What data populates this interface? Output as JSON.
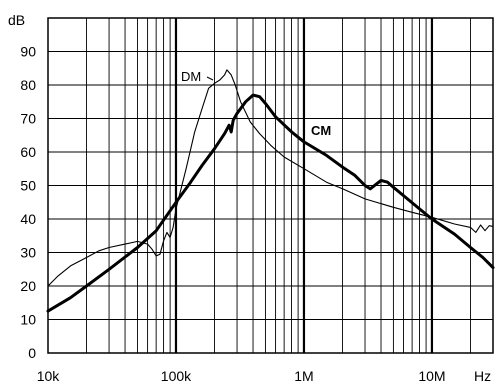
{
  "chart_data": {
    "type": "line",
    "title": "",
    "xlabel": "",
    "ylabel": "",
    "y_unit": "dB",
    "x_unit": "Hz",
    "x_scale": "log",
    "xlim": [
      10000,
      30000000
    ],
    "ylim": [
      0,
      100
    ],
    "grid": true,
    "y_ticks": [
      0,
      10,
      20,
      30,
      40,
      50,
      60,
      70,
      80,
      90
    ],
    "x_ticks": [
      {
        "value": 10000,
        "label": "10k"
      },
      {
        "value": 100000,
        "label": "100k"
      },
      {
        "value": 1000000,
        "label": "1M"
      },
      {
        "value": 10000000,
        "label": "10M"
      }
    ],
    "series": [
      {
        "name": "DM",
        "points": [
          [
            10000,
            20
          ],
          [
            12000,
            23
          ],
          [
            15000,
            26
          ],
          [
            20000,
            28.5
          ],
          [
            25000,
            30.5
          ],
          [
            30000,
            31.5
          ],
          [
            40000,
            32.5
          ],
          [
            50000,
            33.3
          ],
          [
            60000,
            32.5
          ],
          [
            65000,
            31
          ],
          [
            70000,
            29
          ],
          [
            75000,
            29.5
          ],
          [
            80000,
            33.5
          ],
          [
            85000,
            36
          ],
          [
            90000,
            34.5
          ],
          [
            95000,
            37.5
          ],
          [
            100000,
            43
          ],
          [
            120000,
            55
          ],
          [
            140000,
            66
          ],
          [
            160000,
            73
          ],
          [
            180000,
            79
          ],
          [
            200000,
            80.5
          ],
          [
            220000,
            81.5
          ],
          [
            240000,
            83
          ],
          [
            250000,
            84.5
          ],
          [
            270000,
            83
          ],
          [
            290000,
            80
          ],
          [
            320000,
            75
          ],
          [
            380000,
            69
          ],
          [
            450000,
            65.5
          ],
          [
            550000,
            62
          ],
          [
            700000,
            58.5
          ],
          [
            1000000,
            55
          ],
          [
            1500000,
            51
          ],
          [
            2000000,
            49
          ],
          [
            3000000,
            46
          ],
          [
            5000000,
            43.5
          ],
          [
            7000000,
            42
          ],
          [
            10000000,
            40.5
          ],
          [
            15000000,
            38.5
          ],
          [
            20000000,
            37.5
          ],
          [
            22000000,
            36
          ],
          [
            24000000,
            38.2
          ],
          [
            26000000,
            36.5
          ],
          [
            28000000,
            38
          ],
          [
            30000000,
            37.8
          ]
        ]
      },
      {
        "name": "CM",
        "points": [
          [
            10000,
            12.5
          ],
          [
            15000,
            16.5
          ],
          [
            20000,
            20
          ],
          [
            30000,
            25
          ],
          [
            50000,
            31.5
          ],
          [
            70000,
            36.5
          ],
          [
            100000,
            45
          ],
          [
            130000,
            51
          ],
          [
            160000,
            56
          ],
          [
            200000,
            61
          ],
          [
            240000,
            65.5
          ],
          [
            260000,
            68
          ],
          [
            270000,
            66
          ],
          [
            280000,
            69.5
          ],
          [
            300000,
            71.5
          ],
          [
            350000,
            75
          ],
          [
            400000,
            77
          ],
          [
            450000,
            76.5
          ],
          [
            500000,
            74.5
          ],
          [
            600000,
            70.5
          ],
          [
            800000,
            66
          ],
          [
            1000000,
            63
          ],
          [
            1500000,
            59
          ],
          [
            2000000,
            55.5
          ],
          [
            2500000,
            53
          ],
          [
            3000000,
            50
          ],
          [
            3300000,
            49
          ],
          [
            3700000,
            50.5
          ],
          [
            4000000,
            51.5
          ],
          [
            4500000,
            51
          ],
          [
            5000000,
            49.5
          ],
          [
            6000000,
            47
          ],
          [
            8000000,
            43
          ],
          [
            10000000,
            40
          ],
          [
            15000000,
            35.5
          ],
          [
            20000000,
            31.5
          ],
          [
            25000000,
            28.5
          ],
          [
            30000000,
            25.5
          ]
        ]
      }
    ]
  }
}
